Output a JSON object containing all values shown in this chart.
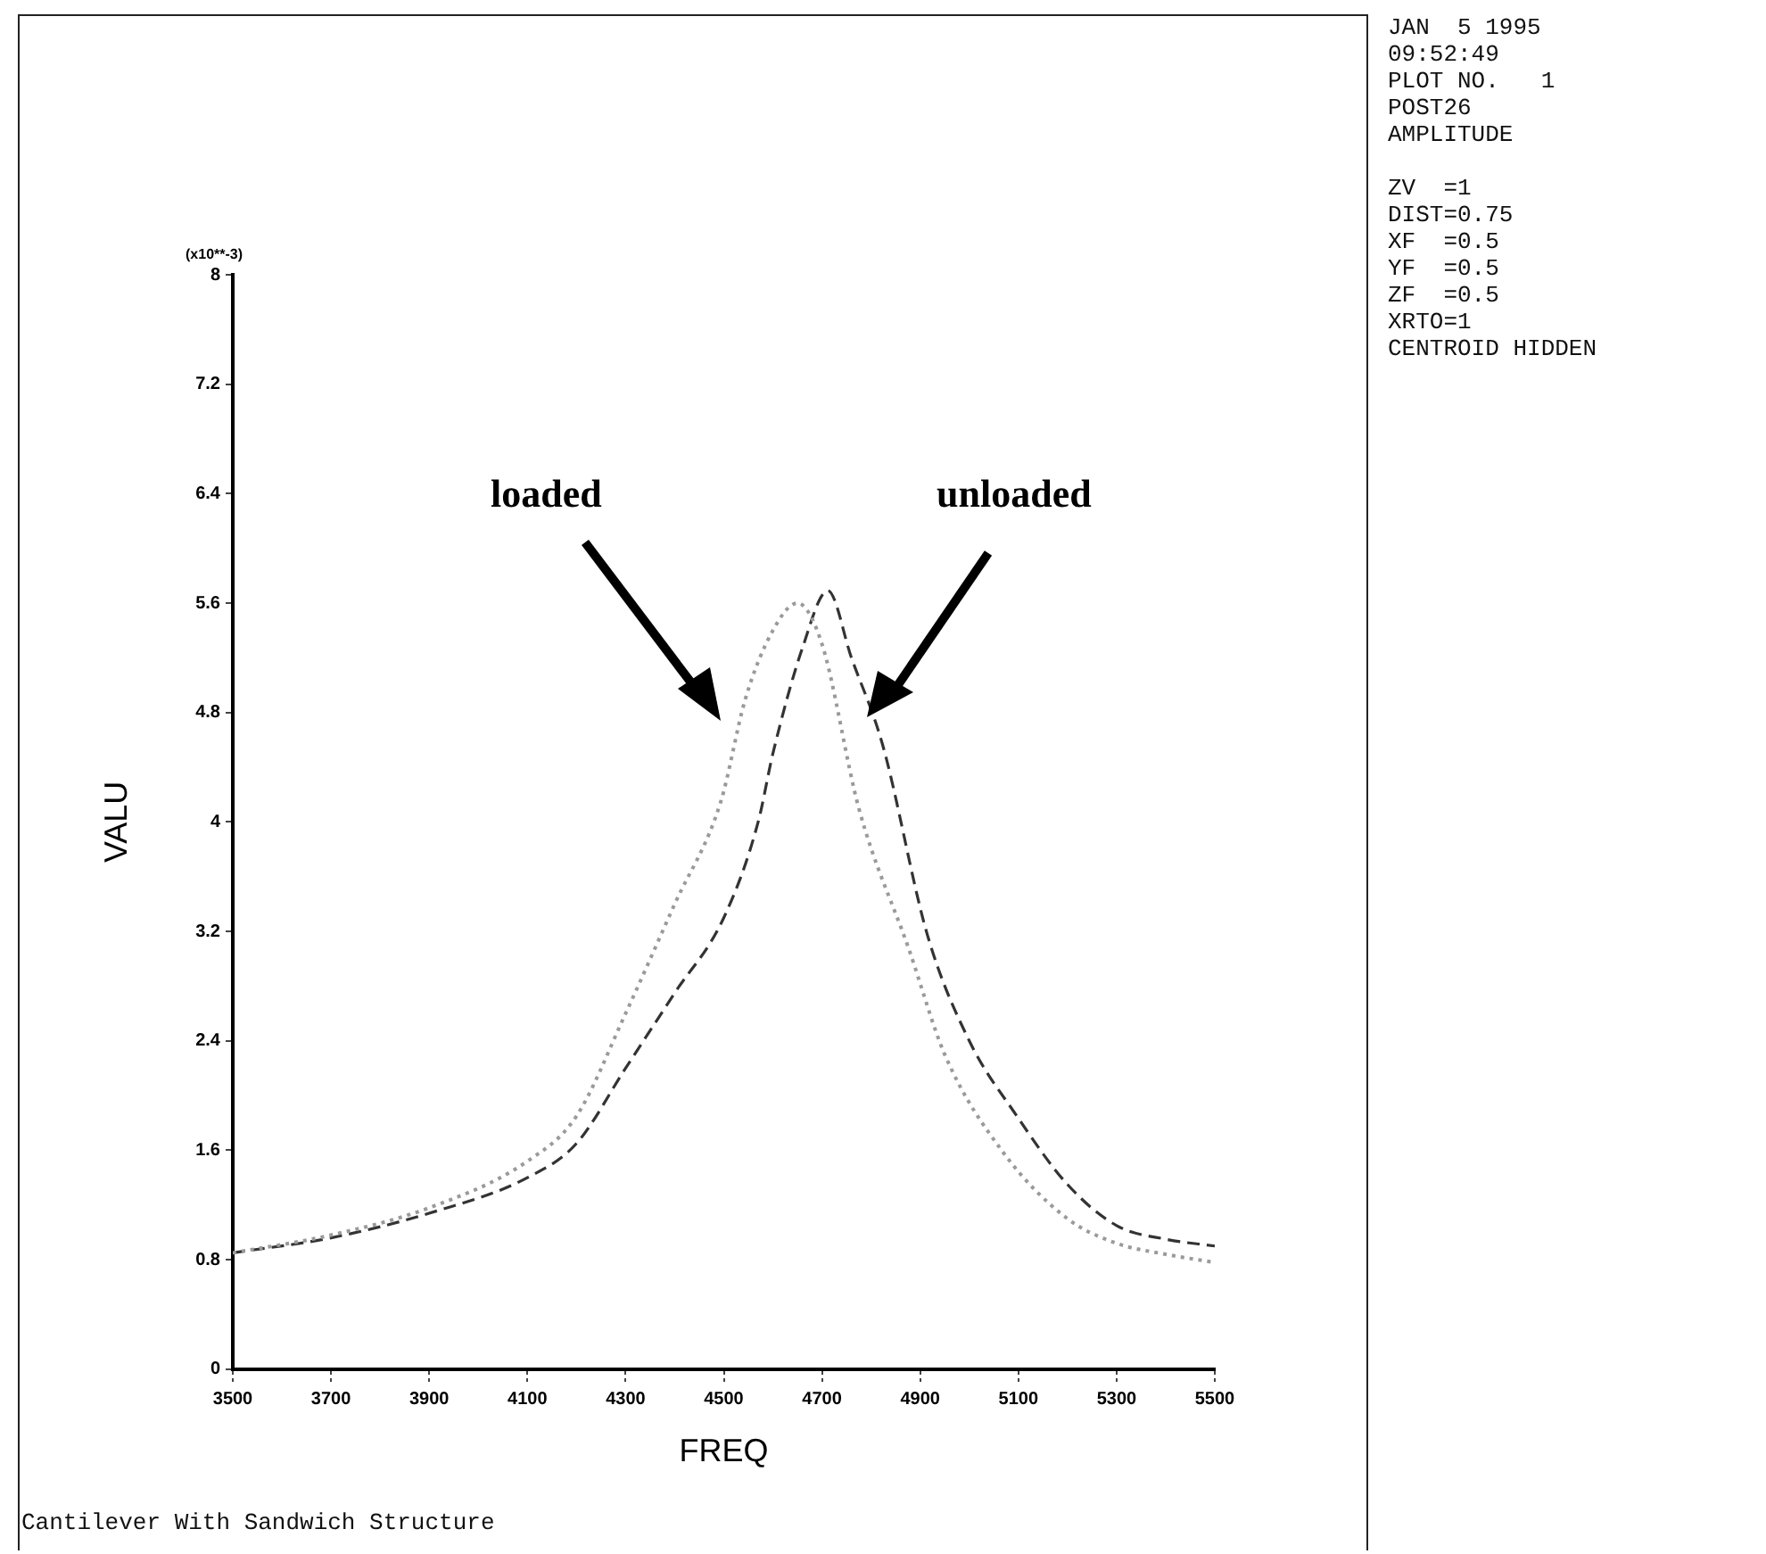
{
  "chart_data": {
    "type": "line",
    "title": "Cantilever With Sandwich Structure",
    "xlabel": "FREQ",
    "ylabel": "VALU",
    "annotations": [
      "(x10**-3)",
      "JAN  5 1995",
      "09:52:49",
      "PLOT NO.   1",
      "POST26",
      "AMPLITUDE",
      "ZV  =1",
      "DIST=0.75",
      "XF  =0.5",
      "YF  =0.5",
      "ZF  =0.5",
      "XRTO=1",
      "CENTROID HIDDEN"
    ],
    "xlim": [
      3500,
      5500
    ],
    "xticks": [
      3500,
      3700,
      3900,
      4100,
      4300,
      4500,
      4700,
      4900,
      5100,
      5300,
      5500
    ],
    "ylim": [
      0,
      8
    ],
    "yticks": [
      0,
      0.8,
      1.6,
      2.4,
      3.2,
      4,
      4.8,
      5.6,
      6.4,
      7.2,
      8
    ],
    "grid": false,
    "legend": false,
    "marker": "none",
    "series": [
      {
        "name": "loaded",
        "color": "#9a9a9a",
        "line_style": "dotted",
        "x": [
          3500,
          3700,
          3900,
          4100,
          4200,
          4300,
          4400,
          4494,
          4544,
          4600,
          4650,
          4700,
          4775,
          4877,
          4950,
          5070,
          5200,
          5300,
          5400,
          5500
        ],
        "values": [
          0.85,
          0.98,
          1.18,
          1.52,
          1.85,
          2.6,
          3.4,
          4.15,
          4.9,
          5.4,
          5.6,
          5.3,
          4.1,
          3.07,
          2.3,
          1.58,
          1.1,
          0.92,
          0.84,
          0.78
        ]
      },
      {
        "name": "unloaded",
        "color": "#333333",
        "line_style": "dashed",
        "x": [
          3500,
          3700,
          3900,
          4100,
          4200,
          4300,
          4400,
          4500,
          4570,
          4600,
          4660,
          4712,
          4760,
          4823,
          4915,
          5000,
          5095,
          5200,
          5300,
          5400,
          5500
        ],
        "values": [
          0.85,
          0.96,
          1.14,
          1.4,
          1.65,
          2.2,
          2.75,
          3.3,
          4.0,
          4.5,
          5.27,
          5.69,
          5.2,
          4.57,
          3.17,
          2.4,
          1.86,
          1.35,
          1.05,
          0.95,
          0.9
        ]
      }
    ]
  }
}
